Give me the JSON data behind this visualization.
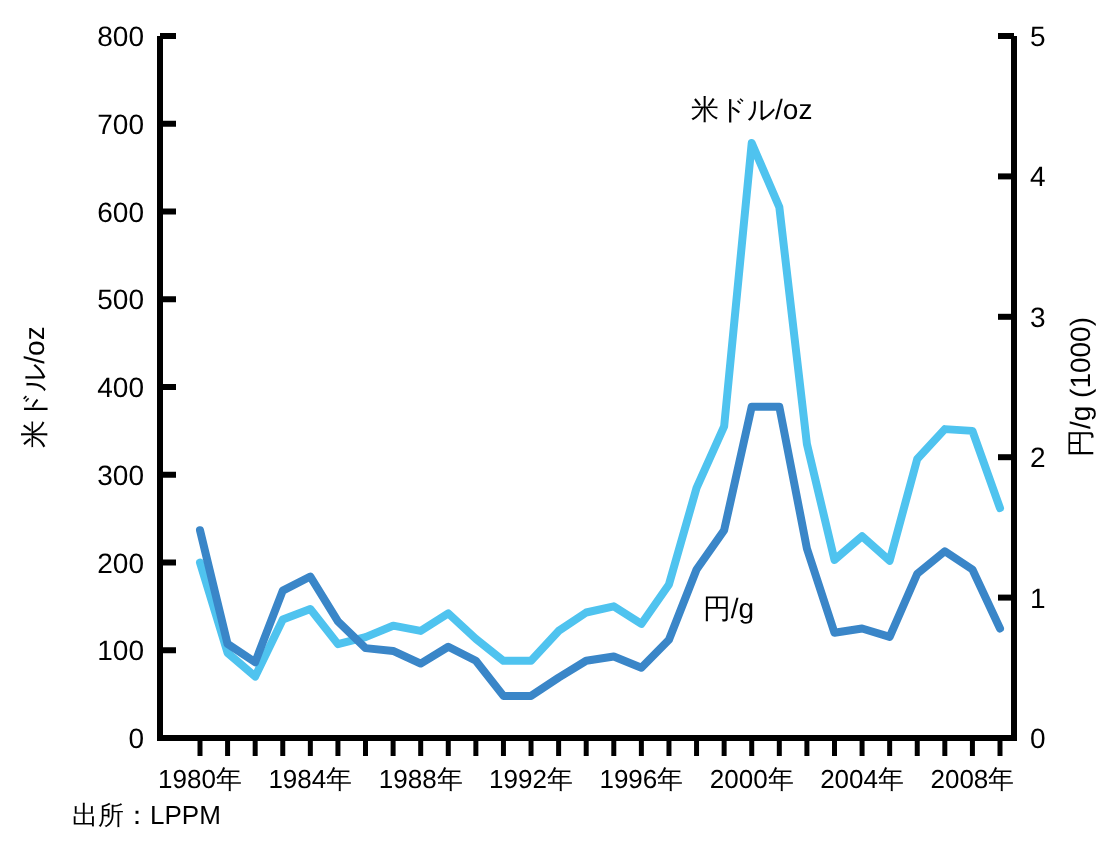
{
  "chart_data": {
    "type": "line",
    "ylabel": "米ドル/oz",
    "y2label": "円/g (1000)",
    "annotations": [
      "出所：LPPM"
    ],
    "categories": [
      "1980年",
      null,
      null,
      null,
      "1984年",
      null,
      null,
      null,
      "1988年",
      null,
      null,
      null,
      "1992年",
      null,
      null,
      null,
      "1996年",
      null,
      null,
      null,
      "2000年",
      null,
      null,
      null,
      "2004年",
      null,
      null,
      null,
      "2008年",
      null
    ],
    "ylim": [
      0,
      800
    ],
    "yticks": [
      0,
      100,
      200,
      300,
      400,
      500,
      600,
      700,
      800
    ],
    "y2lim": [
      0,
      5
    ],
    "y2ticks": [
      0,
      1,
      2,
      3,
      4,
      5
    ],
    "grid": false,
    "line_style": "solid",
    "series": [
      {
        "name": "米ドル/oz",
        "color": "#4fc3ef",
        "values": [
          200,
          97,
          70,
          135,
          147,
          107,
          115,
          128,
          122,
          142,
          113,
          88,
          88,
          122,
          143,
          150,
          130,
          175,
          285,
          355,
          678,
          605,
          335,
          203,
          230,
          202,
          318,
          352,
          350,
          262
        ]
      },
      {
        "name": "円/g",
        "color": "#3a86c8",
        "axis": "y2",
        "values": [
          1.48,
          0.67,
          0.54,
          1.05,
          1.15,
          0.83,
          0.64,
          0.62,
          0.53,
          0.65,
          0.55,
          0.3,
          0.3,
          0.43,
          0.55,
          0.58,
          0.5,
          0.7,
          1.2,
          1.48,
          2.36,
          2.36,
          1.35,
          0.75,
          0.78,
          0.72,
          1.17,
          1.33,
          1.2,
          0.78
        ]
      }
    ]
  }
}
